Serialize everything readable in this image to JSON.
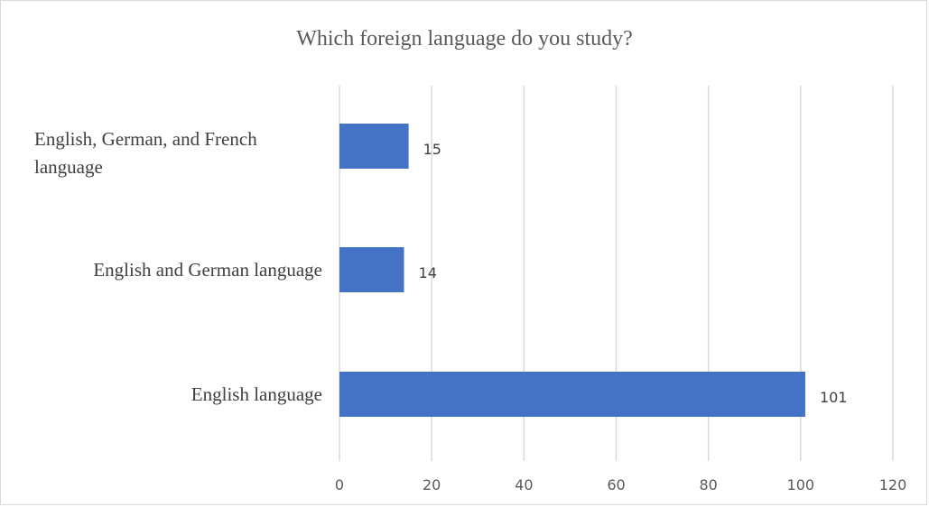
{
  "chart_data": {
    "type": "bar",
    "orientation": "horizontal",
    "title": "Which foreign language do you study?",
    "categories": [
      "English language",
      "English and German language",
      "English, German, and French language"
    ],
    "values": [
      101,
      14,
      15
    ],
    "xlim": [
      0,
      120
    ],
    "x_ticks": [
      "0",
      "20",
      "40",
      "60",
      "80",
      "100",
      "120"
    ],
    "grid": true,
    "data_labels": [
      "101",
      "14",
      "15"
    ],
    "bar_color": "#4472c4",
    "grid_color": "#d9d9d9"
  }
}
